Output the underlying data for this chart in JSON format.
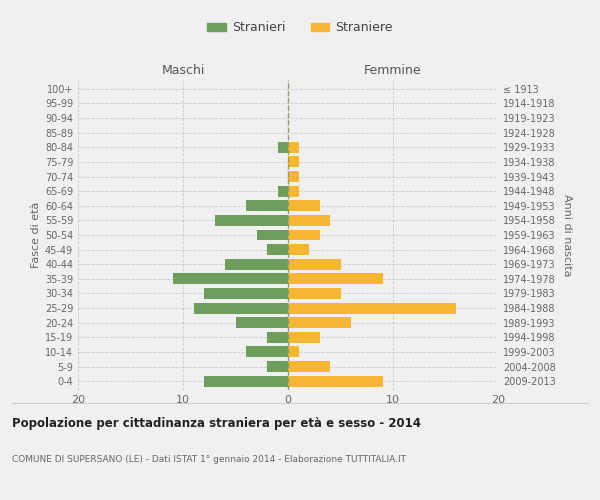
{
  "age_groups": [
    "0-4",
    "5-9",
    "10-14",
    "15-19",
    "20-24",
    "25-29",
    "30-34",
    "35-39",
    "40-44",
    "45-49",
    "50-54",
    "55-59",
    "60-64",
    "65-69",
    "70-74",
    "75-79",
    "80-84",
    "85-89",
    "90-94",
    "95-99",
    "100+"
  ],
  "birth_years": [
    "2009-2013",
    "2004-2008",
    "1999-2003",
    "1994-1998",
    "1989-1993",
    "1984-1988",
    "1979-1983",
    "1974-1978",
    "1969-1973",
    "1964-1968",
    "1959-1963",
    "1954-1958",
    "1949-1953",
    "1944-1948",
    "1939-1943",
    "1934-1938",
    "1929-1933",
    "1924-1928",
    "1919-1923",
    "1914-1918",
    "≤ 1913"
  ],
  "maschi": [
    8,
    2,
    4,
    2,
    5,
    9,
    8,
    11,
    6,
    2,
    3,
    7,
    4,
    1,
    0,
    0,
    1,
    0,
    0,
    0,
    0
  ],
  "femmine": [
    9,
    4,
    1,
    3,
    6,
    16,
    5,
    9,
    5,
    2,
    3,
    4,
    3,
    1,
    1,
    1,
    1,
    0,
    0,
    0,
    0
  ],
  "color_maschi": "#6d9e5e",
  "color_femmine": "#f5b731",
  "title": "Popolazione per cittadinanza straniera per età e sesso - 2014",
  "subtitle": "COMUNE DI SUPERSANO (LE) - Dati ISTAT 1° gennaio 2014 - Elaborazione TUTTITALIA.IT",
  "ylabel_left": "Fasce di età",
  "ylabel_right": "Anni di nascita",
  "label_maschi": "Maschi",
  "label_femmine": "Femmine",
  "legend_maschi": "Stranieri",
  "legend_femmine": "Straniere",
  "xlim": [
    -20,
    20
  ],
  "xticks": [
    -20,
    -10,
    0,
    10,
    20
  ],
  "xticklabels": [
    "20",
    "10",
    "0",
    "10",
    "20"
  ],
  "background_color": "#f0f0f0",
  "grid_color": "#cccccc",
  "bar_height": 0.75
}
